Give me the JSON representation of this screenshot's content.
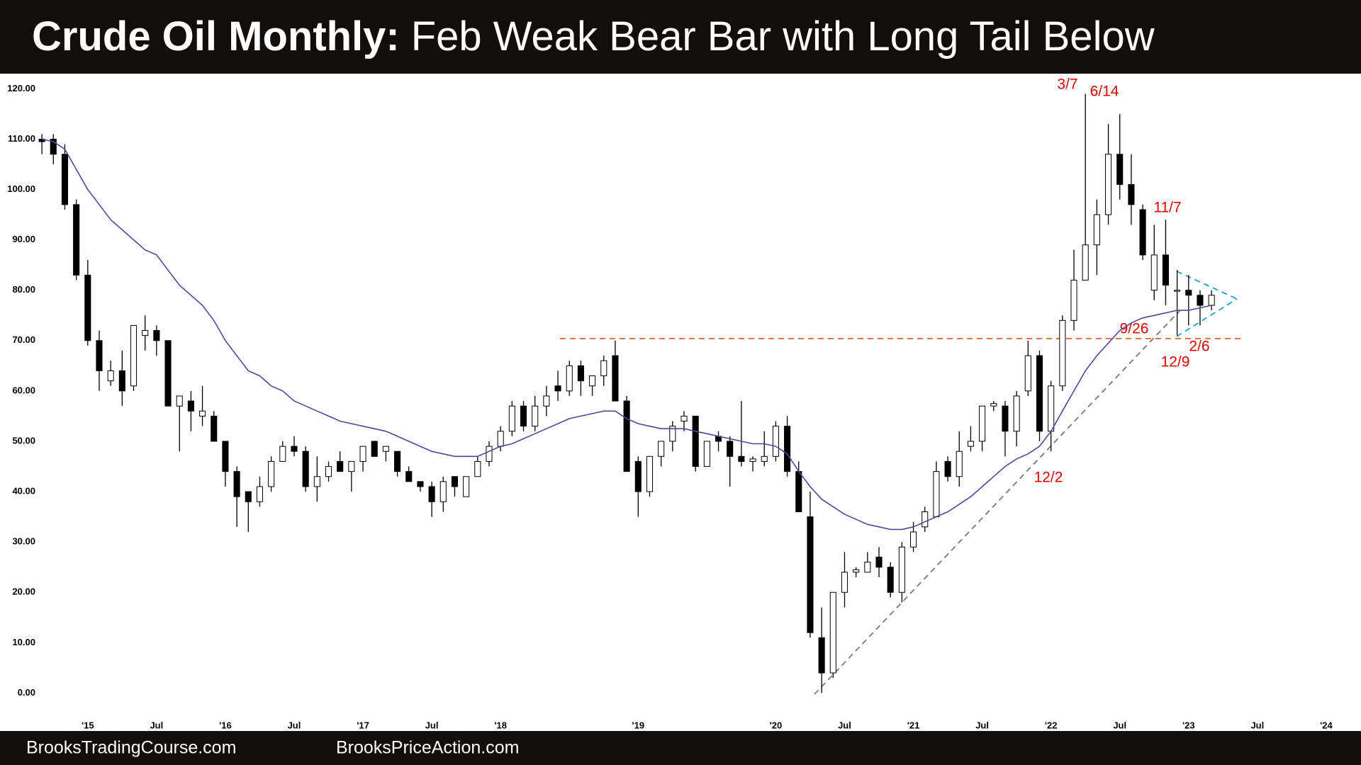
{
  "chart_data": {
    "type": "candlestick",
    "title": "Crude Oil Monthly:",
    "subtitle": "Feb Weak Bear Bar with Long Tail Below",
    "footer_left": "BrooksTradingCourse.com",
    "footer_right": "BrooksPriceAction.com",
    "annotations": [
      "3/7",
      "6/14",
      "11/7",
      "9/26",
      "2/6",
      "12/9",
      "12/2"
    ],
    "categories": [
      null,
      null,
      null,
      null,
      "'15",
      null,
      null,
      null,
      null,
      null,
      "Jul",
      null,
      null,
      null,
      null,
      null,
      "'16",
      null,
      null,
      null,
      null,
      null,
      "Jul",
      null,
      null,
      null,
      null,
      null,
      "'17",
      null,
      null,
      null,
      null,
      null,
      "Jul",
      null,
      null,
      null,
      null,
      null,
      "'18",
      null,
      null,
      null,
      null,
      null,
      null,
      null,
      null,
      null,
      null,
      null,
      "'19",
      null,
      null,
      null,
      null,
      null,
      null,
      null,
      null,
      null,
      null,
      null,
      "'20",
      null,
      null,
      null,
      null,
      null,
      "Jul",
      null,
      null,
      null,
      null,
      null,
      "'21",
      null,
      null,
      null,
      null,
      null,
      "Jul",
      null,
      null,
      null,
      null,
      null,
      "'22",
      null,
      null,
      null,
      null,
      null,
      "Jul",
      null,
      null,
      null,
      null,
      null,
      "'23",
      null,
      null,
      null,
      null,
      null,
      "Jul",
      null,
      null,
      null,
      null,
      null,
      "'24"
    ],
    "ohlc": [
      [
        110,
        111,
        107,
        109.5
      ],
      [
        110,
        111,
        105,
        107
      ],
      [
        107,
        109,
        96,
        97
      ],
      [
        97,
        98,
        82,
        83
      ],
      [
        83,
        86,
        69,
        70
      ],
      [
        70,
        72,
        60,
        64
      ],
      [
        62,
        66,
        61,
        64
      ],
      [
        64,
        68,
        57,
        60
      ],
      [
        61,
        73,
        60,
        73
      ],
      [
        71,
        75,
        68,
        72
      ],
      [
        72,
        73,
        67,
        70
      ],
      [
        70,
        70,
        57,
        57
      ],
      [
        57,
        59,
        48,
        59
      ],
      [
        58,
        60,
        52,
        56
      ],
      [
        55,
        61,
        53,
        56
      ],
      [
        55,
        56,
        50,
        50
      ],
      [
        50,
        50,
        41,
        44
      ],
      [
        44,
        45,
        33,
        39
      ],
      [
        40,
        40,
        32,
        38
      ],
      [
        38,
        43,
        37,
        41
      ],
      [
        41,
        47,
        40,
        46
      ],
      [
        46,
        50,
        46,
        49
      ],
      [
        49,
        51,
        47,
        48
      ],
      [
        48,
        49,
        40,
        41
      ],
      [
        41,
        47,
        38,
        43
      ],
      [
        43,
        46,
        42,
        45
      ],
      [
        46,
        48,
        44,
        44
      ],
      [
        44,
        46,
        40,
        46
      ],
      [
        46,
        49,
        44,
        49
      ],
      [
        50,
        50,
        47,
        47
      ],
      [
        48,
        49,
        46,
        49
      ],
      [
        48,
        48,
        43,
        44
      ],
      [
        44,
        45,
        42,
        42
      ],
      [
        42,
        42,
        40,
        41
      ],
      [
        41,
        42,
        35,
        38
      ],
      [
        38,
        43,
        36,
        42
      ],
      [
        43,
        43,
        39,
        41
      ],
      [
        39,
        43,
        39,
        43
      ],
      [
        43,
        47,
        43,
        46
      ],
      [
        46,
        50,
        45,
        49
      ],
      [
        49,
        53,
        48,
        52
      ],
      [
        52,
        58,
        51,
        57
      ],
      [
        57,
        58,
        52,
        53
      ],
      [
        53,
        59,
        52,
        57
      ],
      [
        57,
        61,
        55,
        59
      ],
      [
        61,
        64,
        58,
        60
      ],
      [
        60,
        66,
        59,
        65
      ],
      [
        65,
        66,
        59,
        62
      ],
      [
        61,
        63,
        59,
        63
      ],
      [
        63,
        67,
        61,
        66
      ],
      [
        67,
        70,
        58,
        58
      ],
      [
        58,
        59,
        44,
        44
      ],
      [
        46,
        47,
        35,
        40
      ],
      [
        40,
        47,
        39,
        47
      ],
      [
        47,
        50,
        45,
        50
      ],
      [
        50,
        54,
        48,
        53
      ],
      [
        54,
        56,
        52,
        55
      ],
      [
        55,
        55,
        44,
        45
      ],
      [
        45,
        50,
        45,
        50
      ],
      [
        51,
        52,
        48,
        50
      ],
      [
        50,
        51,
        41,
        47
      ],
      [
        47,
        58,
        45,
        46
      ],
      [
        46,
        47,
        44,
        46.5
      ],
      [
        46,
        52,
        45,
        47
      ],
      [
        47,
        54,
        46,
        53
      ],
      [
        53,
        55,
        43,
        44
      ],
      [
        44,
        46,
        36,
        36
      ],
      [
        35,
        40,
        11,
        12
      ],
      [
        11,
        17,
        0,
        4
      ],
      [
        4,
        20,
        3,
        20
      ],
      [
        20,
        28,
        17,
        24
      ],
      [
        24,
        25,
        23,
        24.5
      ],
      [
        24,
        28,
        24,
        26
      ],
      [
        27,
        29,
        23,
        25
      ],
      [
        25,
        26,
        19,
        20
      ],
      [
        20,
        30,
        18,
        29
      ],
      [
        29,
        34,
        28,
        32
      ],
      [
        33,
        37,
        32,
        36
      ],
      [
        35,
        46,
        35,
        44
      ],
      [
        46,
        47,
        42,
        43
      ],
      [
        43,
        52,
        41,
        48
      ],
      [
        49,
        53,
        48,
        50
      ],
      [
        50,
        57,
        48,
        57
      ],
      [
        57,
        58,
        56,
        57.5
      ],
      [
        57,
        58,
        47,
        52
      ],
      [
        52,
        60,
        49,
        59
      ],
      [
        60,
        70,
        59,
        67
      ],
      [
        67,
        68,
        50,
        52
      ],
      [
        52,
        62,
        48,
        61
      ],
      [
        61,
        75,
        60,
        74
      ],
      [
        74,
        88,
        72,
        82
      ],
      [
        82,
        119,
        82,
        89
      ],
      [
        89,
        98,
        83,
        95
      ],
      [
        95,
        113,
        93,
        107
      ],
      [
        107,
        115,
        98,
        101
      ],
      [
        101,
        107,
        93,
        97
      ],
      [
        96,
        97,
        86,
        87
      ],
      [
        80,
        93,
        78,
        87
      ],
      [
        87,
        94,
        77,
        81
      ],
      [
        80,
        84,
        71,
        80
      ],
      [
        80,
        83,
        73,
        79
      ],
      [
        79,
        80,
        73,
        77
      ],
      [
        77,
        80,
        76,
        79
      ],
      null,
      null,
      null,
      null,
      null,
      null,
      null,
      null,
      null,
      null
    ],
    "ma": [
      110,
      109.5,
      108,
      104,
      100,
      97,
      94,
      92,
      90,
      88,
      87,
      84,
      81,
      79,
      77,
      74,
      70,
      67,
      64,
      63,
      61,
      60,
      58,
      57,
      56,
      55,
      54,
      53.5,
      53,
      52.5,
      52,
      51,
      50,
      49,
      48,
      47.5,
      47,
      47,
      47,
      48,
      49,
      49.5,
      50.5,
      51.5,
      52.5,
      53.5,
      54.5,
      55,
      55.5,
      56,
      56,
      54.5,
      53.5,
      53,
      52.5,
      52.5,
      52.5,
      52,
      51.5,
      51,
      50.5,
      50,
      49.5,
      49.5,
      49,
      47.5,
      44,
      41,
      38.5,
      37,
      35.5,
      34.5,
      33.5,
      33,
      32.5,
      32.5,
      33,
      34,
      35,
      36,
      37.5,
      39,
      41,
      43,
      45,
      46.5,
      47.5,
      49,
      52,
      56,
      60,
      64,
      67,
      69.5,
      72,
      73.5,
      74.5,
      75,
      75.5,
      76,
      76,
      76.5,
      77,
      null,
      null,
      null,
      null,
      null,
      null,
      null,
      null,
      null,
      null
    ],
    "ma_color": "#4a4a9c",
    "up_color": "#ffffff",
    "down_color": "#000000",
    "ylim": [
      -5,
      123
    ],
    "yticks": [
      {
        "value": 0,
        "label": "0.00"
      },
      {
        "value": 10,
        "label": "10.00"
      },
      {
        "value": 20,
        "label": "20.00"
      },
      {
        "value": 30,
        "label": "30.00"
      },
      {
        "value": 40,
        "label": "40.00"
      },
      {
        "value": 50,
        "label": "50.00"
      },
      {
        "value": 60,
        "label": "60.00"
      },
      {
        "value": 70,
        "label": "70.00"
      },
      {
        "value": 80,
        "label": "80.00"
      },
      {
        "value": 90,
        "label": "90.00"
      },
      {
        "value": 100,
        "label": "100.00"
      },
      {
        "value": 110,
        "label": "110.00"
      },
      {
        "value": 120,
        "label": "120.00"
      }
    ],
    "grid": false
  }
}
